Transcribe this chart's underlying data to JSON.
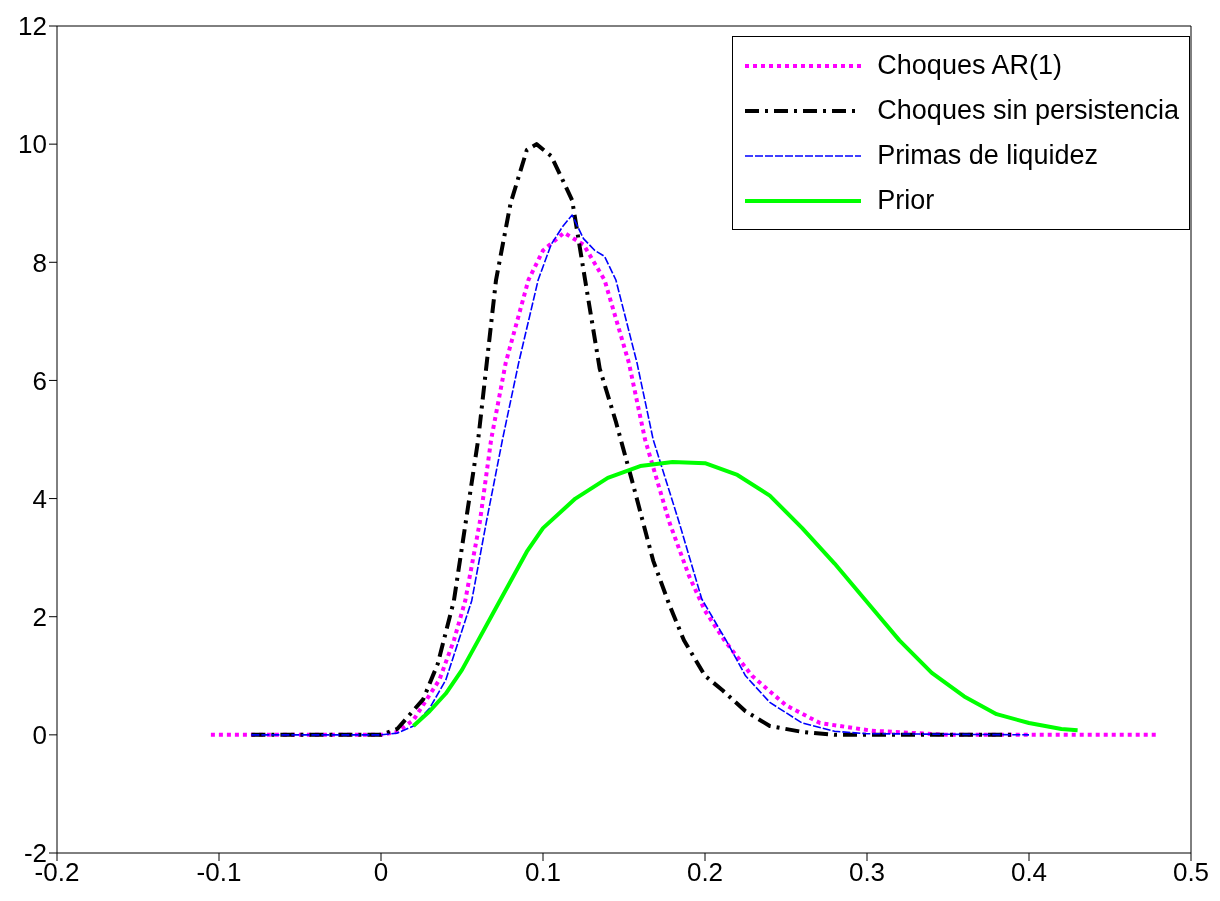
{
  "chart_data": {
    "type": "line",
    "xlim": [
      -0.2,
      0.5
    ],
    "xticks": [
      -0.2,
      -0.1,
      0,
      0.1,
      0.2,
      0.3,
      0.4,
      0.5
    ],
    "ylim": [
      -2,
      12
    ],
    "yticks": [
      -2,
      0,
      2,
      4,
      6,
      8,
      10,
      12
    ],
    "grid": false,
    "legend": "top right",
    "marker": "none",
    "series": [
      {
        "name": "Choques AR(1)",
        "color": "#ff00ff",
        "line_style": "dotted",
        "x": [
          -0.105,
          0,
          0.01,
          0.02,
          0.036,
          0.045,
          0.052,
          0.061,
          0.068,
          0.077,
          0.091,
          0.1,
          0.113,
          0.125,
          0.138,
          0.153,
          0.163,
          0.178,
          0.19,
          0.2,
          0.212,
          0.229,
          0.25,
          0.271,
          0.303,
          0.35,
          0.48
        ],
        "values": [
          0,
          0,
          0.05,
          0.25,
          0.93,
          1.6,
          2.27,
          3.6,
          5.0,
          6.3,
          7.7,
          8.2,
          8.5,
          8.3,
          7.7,
          6.3,
          5.0,
          3.6,
          2.7,
          2.1,
          1.6,
          1.0,
          0.5,
          0.2,
          0.07,
          0,
          0
        ]
      },
      {
        "name": "Choques sin persistencia",
        "color": "#000000",
        "line_style": "dashdot",
        "x": [
          -0.08,
          0,
          0.01,
          0.026,
          0.035,
          0.045,
          0.06,
          0.071,
          0.08,
          0.09,
          0.096,
          0.105,
          0.112,
          0.118,
          0.126,
          0.135,
          0.145,
          0.155,
          0.168,
          0.178,
          0.187,
          0.2,
          0.211,
          0.225,
          0.24,
          0.26,
          0.28,
          0.39
        ],
        "values": [
          0,
          0,
          0.1,
          0.6,
          1.2,
          2.27,
          5.0,
          7.7,
          9.0,
          9.9,
          10.0,
          9.8,
          9.4,
          9.05,
          7.7,
          6.2,
          5.3,
          4.3,
          2.95,
          2.2,
          1.6,
          1.0,
          0.75,
          0.4,
          0.15,
          0.05,
          0,
          0
        ]
      },
      {
        "name": "Primas de liquidez",
        "color": "#0000ff",
        "line_style": "dashed",
        "x": [
          -0.08,
          0,
          0.01,
          0.02,
          0.03,
          0.04,
          0.048,
          0.056,
          0.065,
          0.075,
          0.085,
          0.097,
          0.105,
          0.112,
          0.118,
          0.125,
          0.132,
          0.138,
          0.145,
          0.158,
          0.168,
          0.184,
          0.198,
          0.213,
          0.225,
          0.24,
          0.26,
          0.28,
          0.3,
          0.4
        ],
        "values": [
          0,
          0,
          0.03,
          0.15,
          0.45,
          0.93,
          1.6,
          2.27,
          3.6,
          5.0,
          6.3,
          7.7,
          8.3,
          8.6,
          8.8,
          8.4,
          8.2,
          8.1,
          7.7,
          6.3,
          5.0,
          3.6,
          2.3,
          1.6,
          1.0,
          0.55,
          0.2,
          0.06,
          0.02,
          0
        ]
      },
      {
        "name": "Prior",
        "color": "#00ff00",
        "line_style": "solid",
        "x": [
          0.02,
          0.03,
          0.04,
          0.05,
          0.06,
          0.07,
          0.08,
          0.09,
          0.1,
          0.12,
          0.14,
          0.16,
          0.18,
          0.2,
          0.22,
          0.24,
          0.26,
          0.28,
          0.3,
          0.32,
          0.34,
          0.36,
          0.38,
          0.4,
          0.42,
          0.43
        ],
        "values": [
          0.15,
          0.4,
          0.7,
          1.1,
          1.6,
          2.1,
          2.6,
          3.1,
          3.5,
          4.0,
          4.35,
          4.55,
          4.62,
          4.6,
          4.4,
          4.05,
          3.5,
          2.9,
          2.25,
          1.6,
          1.05,
          0.65,
          0.35,
          0.2,
          0.1,
          0.08
        ]
      }
    ]
  }
}
